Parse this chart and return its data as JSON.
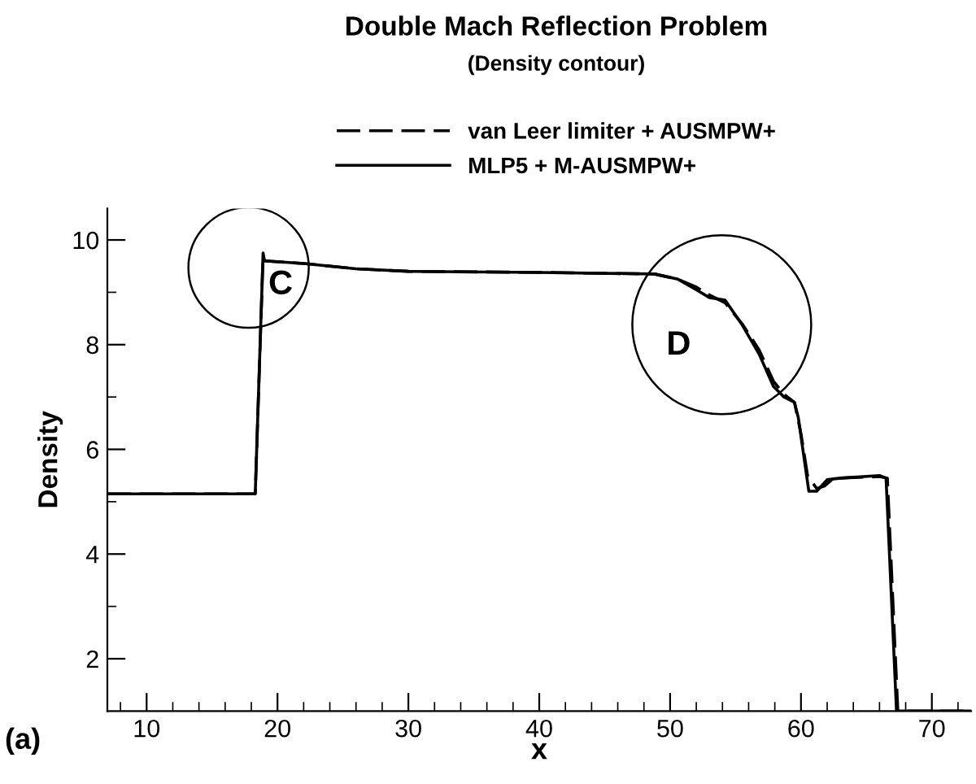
{
  "chart_data": {
    "type": "line",
    "title": "Double Mach Reflection Problem",
    "subtitle": "(Density contour)",
    "xlabel": "x",
    "ylabel": "Density",
    "xlim": [
      7,
      73
    ],
    "ylim": [
      1,
      10.6
    ],
    "xticks": [
      {
        "value": 8,
        "label": null
      },
      10,
      {
        "value": 12,
        "label": null
      },
      {
        "value": 14,
        "label": null
      },
      {
        "value": 16,
        "label": null
      },
      {
        "value": 18,
        "label": null
      },
      20,
      {
        "value": 22,
        "label": null
      },
      {
        "value": 24,
        "label": null
      },
      {
        "value": 26,
        "label": null
      },
      {
        "value": 28,
        "label": null
      },
      30,
      {
        "value": 32,
        "label": null
      },
      {
        "value": 34,
        "label": null
      },
      {
        "value": 36,
        "label": null
      },
      {
        "value": 38,
        "label": null
      },
      40,
      {
        "value": 42,
        "label": null
      },
      {
        "value": 44,
        "label": null
      },
      {
        "value": 46,
        "label": null
      },
      {
        "value": 48,
        "label": null
      },
      50,
      {
        "value": 52,
        "label": null
      },
      {
        "value": 54,
        "label": null
      },
      {
        "value": 56,
        "label": null
      },
      {
        "value": 58,
        "label": null
      },
      60,
      {
        "value": 62,
        "label": null
      },
      {
        "value": 64,
        "label": null
      },
      {
        "value": 66,
        "label": null
      },
      {
        "value": 68,
        "label": null
      },
      70,
      {
        "value": 72,
        "label": null
      }
    ],
    "yticks": [
      2,
      {
        "value": 3,
        "label": null
      },
      4,
      {
        "value": 5,
        "label": null
      },
      6,
      {
        "value": 7,
        "label": null
      },
      8,
      {
        "value": 9,
        "label": null
      },
      10
    ],
    "grid": false,
    "legend": "top",
    "marker": "none",
    "series": [
      {
        "name": "van Leer limiter + AUSMPW+",
        "color": "#000000",
        "line_style": "dashed",
        "x": [
          7,
          18.3,
          18.9,
          19.0,
          22,
          26,
          30,
          40,
          48.8,
          50.6,
          52,
          53,
          54.2,
          55.5,
          56.8,
          57.9,
          58.7,
          59.5,
          60.0,
          60.5,
          61.2,
          61.8,
          62.5,
          63,
          66.0,
          66.6,
          67.4,
          73
        ],
        "values": [
          5.15,
          5.15,
          9.7,
          9.6,
          9.55,
          9.45,
          9.4,
          9.38,
          9.35,
          9.25,
          9.1,
          8.95,
          8.8,
          8.4,
          7.9,
          7.3,
          7.05,
          6.9,
          6.3,
          5.5,
          5.25,
          5.3,
          5.45,
          5.45,
          5.48,
          5.45,
          1.0,
          1.0
        ]
      },
      {
        "name": "MLP5 + M-AUSMPW+",
        "color": "#000000",
        "line_style": "solid",
        "x": [
          7,
          18.3,
          18.9,
          19.0,
          22,
          26,
          30,
          40,
          48.8,
          50.6,
          52,
          53,
          54.2,
          55.5,
          56.8,
          57.9,
          58.7,
          59.5,
          59.8,
          60.2,
          60.6,
          61.2,
          62.0,
          63,
          66.0,
          66.5,
          67.3,
          73
        ],
        "values": [
          5.15,
          5.15,
          9.75,
          9.6,
          9.55,
          9.45,
          9.4,
          9.38,
          9.35,
          9.25,
          9.05,
          8.9,
          8.85,
          8.38,
          7.82,
          7.2,
          7.0,
          6.9,
          6.6,
          5.9,
          5.2,
          5.2,
          5.42,
          5.45,
          5.5,
          5.45,
          1.0,
          1.0
        ]
      }
    ],
    "annotations": [
      {
        "text": "C",
        "x": 19.0,
        "y": 9.6
      },
      {
        "text": "D",
        "x": 55.5,
        "y": 8.38
      },
      "(a)"
    ]
  }
}
